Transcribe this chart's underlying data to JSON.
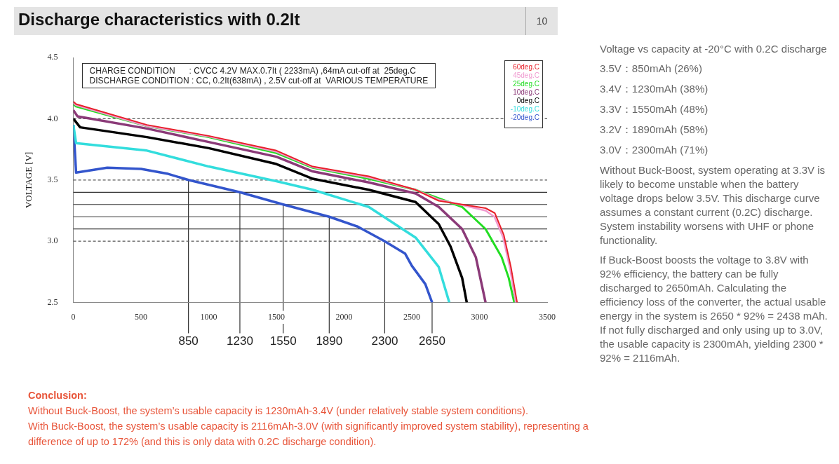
{
  "chart_data": {
    "type": "line",
    "title": "Discharge characteristics with 0.2It",
    "ylabel": "VOLTAGE [V]",
    "xlim": [
      0,
      3500
    ],
    "xticks": [
      0,
      500,
      1000,
      1500,
      2000,
      2500,
      3000,
      3500
    ],
    "ylim": [
      2.5,
      4.5
    ],
    "yticks": [
      {
        "value": 2.5,
        "label": "2.5"
      },
      {
        "value": 3,
        "label": "3.0"
      },
      {
        "value": 3.5,
        "label": "3.5"
      },
      {
        "value": 4,
        "label": "4.0"
      },
      {
        "value": 4.5,
        "label": "4.5"
      }
    ],
    "grid": false,
    "legend": "top right",
    "series": [
      {
        "name": "60deg.C",
        "color": "#e8202a",
        "x": [
          0,
          20,
          543,
          1000,
          1500,
          1768,
          2182,
          2528,
          2699,
          3045,
          3113,
          3180,
          3232,
          3278
        ],
        "values": [
          4.14,
          4.12,
          3.95,
          3.86,
          3.74,
          3.61,
          3.53,
          3.42,
          3.33,
          3.27,
          3.23,
          3.05,
          2.79,
          2.5
        ]
      },
      {
        "name": "45deg.C",
        "color": "#f09ad0",
        "x": [
          0,
          20,
          543,
          1000,
          1500,
          1768,
          2182,
          2528,
          2699,
          3045,
          3110,
          3175,
          3225,
          3268
        ],
        "values": [
          4.13,
          4.11,
          3.94,
          3.855,
          3.73,
          3.605,
          3.52,
          3.42,
          3.34,
          3.25,
          3.2,
          3.03,
          2.78,
          2.5
        ]
      },
      {
        "name": "25deg.C",
        "color": "#22dd22",
        "x": [
          0,
          20,
          543,
          1000,
          1500,
          1768,
          2182,
          2528,
          2699,
          2872,
          3045,
          3164,
          3216,
          3257
        ],
        "values": [
          4.12,
          4.1,
          3.94,
          3.85,
          3.72,
          3.6,
          3.51,
          3.42,
          3.35,
          3.28,
          3.1,
          2.87,
          2.7,
          2.5
        ]
      },
      {
        "name": "10deg.C",
        "color": "#8b3a78",
        "x": [
          0,
          30,
          543,
          1000,
          1500,
          1768,
          2182,
          2528,
          2699,
          2872,
          2973,
          3045
        ],
        "values": [
          4.07,
          4.02,
          3.92,
          3.81,
          3.69,
          3.57,
          3.48,
          3.39,
          3.28,
          3.1,
          2.87,
          2.5
        ]
      },
      {
        "name": "0deg.C",
        "color": "#000000",
        "x": [
          0,
          50,
          543,
          1000,
          1500,
          1768,
          2182,
          2528,
          2699,
          2785,
          2872,
          2906
        ],
        "values": [
          4.0,
          3.93,
          3.85,
          3.76,
          3.63,
          3.51,
          3.42,
          3.32,
          3.14,
          2.96,
          2.7,
          2.5
        ]
      },
      {
        "name": "-10deg.C",
        "color": "#33dddd",
        "x": [
          0,
          20,
          543,
          1000,
          1500,
          1768,
          2182,
          2528,
          2699,
          2777
        ],
        "values": [
          3.95,
          3.8,
          3.74,
          3.61,
          3.49,
          3.42,
          3.28,
          3.03,
          2.79,
          2.5
        ]
      },
      {
        "name": "-20deg.C",
        "color": "#3355cc",
        "x": [
          0,
          20,
          250,
          500,
          700,
          850,
          1230,
          1550,
          1890,
          2100,
          2300,
          2450,
          2500,
          2600,
          2650
        ],
        "values": [
          3.95,
          3.56,
          3.6,
          3.59,
          3.55,
          3.5,
          3.4,
          3.3,
          3.2,
          3.12,
          3.0,
          2.9,
          2.8,
          2.65,
          2.5
        ]
      }
    ],
    "ref_lines": [
      {
        "axis": "y",
        "value": 4.0,
        "line_style": "dashed",
        "color": "#555555"
      },
      {
        "axis": "y",
        "value": 3.5,
        "line_style": "dashed",
        "color": "#555555"
      },
      {
        "axis": "y",
        "value": 3.4,
        "line_style": "solid",
        "color": "#333333"
      },
      {
        "axis": "y",
        "value": 3.3,
        "line_style": "solid",
        "color": "#333333"
      },
      {
        "axis": "y",
        "value": 3.2,
        "line_style": "solid",
        "color": "#333333"
      },
      {
        "axis": "y",
        "value": 3.1,
        "line_style": "solid",
        "color": "#333333"
      },
      {
        "axis": "y",
        "value": 3.0,
        "line_style": "dashed",
        "color": "#555555"
      }
    ],
    "annotations": [
      "10",
      "CHARGE CONDITION      : CVCC 4.2V MAX.0.7It ( 2233mA) ,64mA cut-off at  25deg.C",
      "DISCHARGE CONDITION : CC, 0.2It(638mA) , 2.5V cut-off at  VARIOUS TEMPERATURE",
      "Voltage vs capacity at -20°C with 0.2C discharge",
      "3.5V：850mAh (26%)",
      "3.4V：1230mAh (38%)",
      "3.3V：1550mAh (48%)",
      "3.2V：1890mAh (58%)",
      "3.0V：2300mAh (71%)",
      "Without Buck-Boost, system operating at 3.3V is likely to become unstable when the battery voltage drops below 3.5V. This discharge curve assumes a constant current (0.2C) discharge. System instability worsens with UHF or phone functionality.",
      "If Buck-Boost boosts the voltage to 3.8V with 92% efficiency, the battery can be fully discharged to 2650mAh. Calculating the efficiency loss of the converter, the actual usable energy in the system is 2650 * 92% = 2438 mAh. If not fully discharged and only using up to 3.0V, the usable capacity is 2300mAh, yielding 2300 * 92% = 2116mAh.",
      "Conclusion:",
      "Without Buck-Boost, the system’s usable capacity is 1230mAh-3.4V (under relatively stable system conditions).",
      "With Buck-Boost, the system’s usable capacity is 2116mAh-3.0V (with significantly improved system stability), representing a difference of up to 172% (and this is only data with 0.2C discharge condition).",
      {
        "text": "850",
        "x": 850,
        "y": 3.5
      },
      {
        "text": "1230",
        "x": 1230,
        "y": 3.4
      },
      {
        "text": "1550",
        "x": 1550,
        "y": 3.3
      },
      {
        "text": "1890",
        "x": 1890,
        "y": 3.2
      },
      {
        "text": "2300",
        "x": 2300,
        "y": 3.0
      },
      {
        "text": "2650",
        "x": 2650,
        "y": 2.5
      }
    ]
  }
}
